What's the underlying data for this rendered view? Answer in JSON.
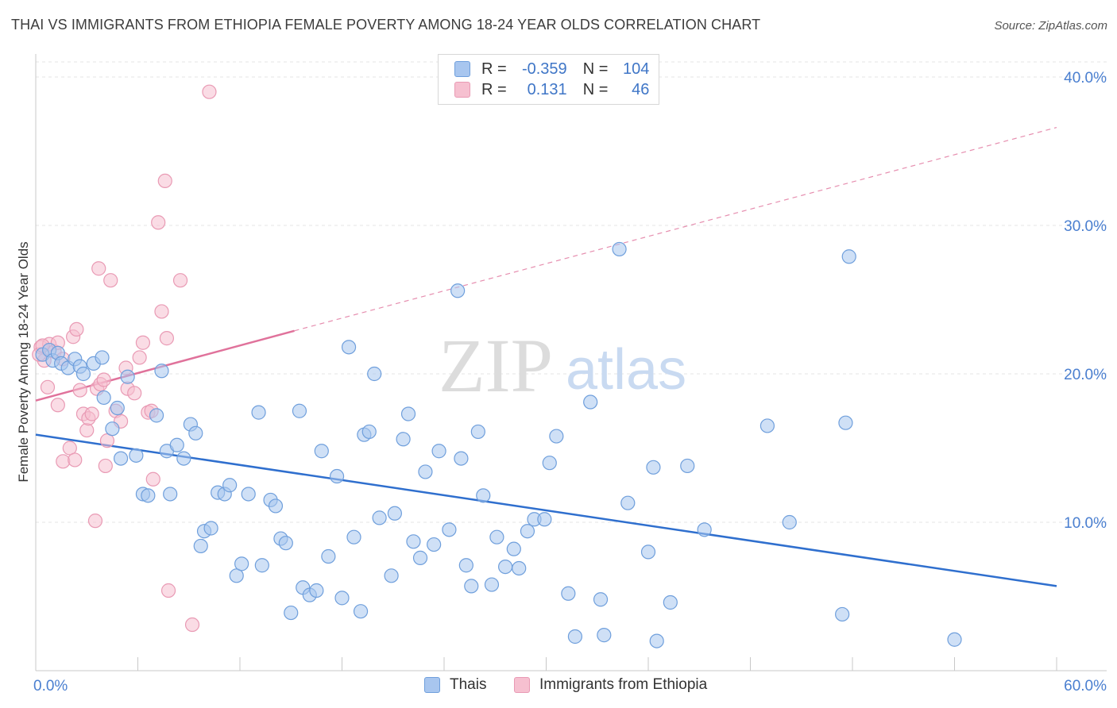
{
  "title": "THAI VS IMMIGRANTS FROM ETHIOPIA FEMALE POVERTY AMONG 18-24 YEAR OLDS CORRELATION CHART",
  "source": "Source: ZipAtlas.com",
  "watermark": {
    "zip": "ZIP",
    "atlas": "atlas"
  },
  "legend_top": {
    "rows": [
      {
        "r_label": "R =",
        "r_value": "-0.359",
        "n_label": "N =",
        "n_value": "104"
      },
      {
        "r_label": "R =",
        "r_value": "0.131",
        "n_label": "N =",
        "n_value": "46"
      }
    ]
  },
  "legend_bottom": {
    "thais": "Thais",
    "ethiopia": "Immigrants from Ethiopia"
  },
  "chart_data": {
    "type": "scatter",
    "title": "THAI VS IMMIGRANTS FROM ETHIOPIA FEMALE POVERTY AMONG 18-24 YEAR OLDS CORRELATION CHART",
    "xlabel": "",
    "ylabel": "Female Poverty Among 18-24 Year Olds",
    "xlim": [
      0,
      60
    ],
    "ylim": [
      0,
      40
    ],
    "x_tick_labels": [
      "0.0%",
      "60.0%"
    ],
    "y_ticks": [
      10,
      20,
      30,
      40
    ],
    "y_tick_labels": [
      "10.0%",
      "20.0%",
      "30.0%",
      "40.0%"
    ],
    "grid": true,
    "colors": {
      "thais_fill": "#a8c6ef",
      "thais_stroke": "#6f9fdc",
      "thais_line": "#2f6fce",
      "eth_fill": "#f6c0d0",
      "eth_stroke": "#e99ab4",
      "eth_line": "#e0729b",
      "tick_text": "#4a7fd0"
    },
    "series": [
      {
        "name": "Thais",
        "r": -0.359,
        "n": 104,
        "trend": {
          "x0": 0,
          "y0": 15.9,
          "x1": 60,
          "y1": 5.7
        },
        "points": [
          [
            0.4,
            21.3
          ],
          [
            0.8,
            21.6
          ],
          [
            1.0,
            20.9
          ],
          [
            1.3,
            21.4
          ],
          [
            1.5,
            20.7
          ],
          [
            1.9,
            20.4
          ],
          [
            2.3,
            21.0
          ],
          [
            2.6,
            20.5
          ],
          [
            2.8,
            20.0
          ],
          [
            3.4,
            20.7
          ],
          [
            3.9,
            21.1
          ],
          [
            4.0,
            18.4
          ],
          [
            4.5,
            16.3
          ],
          [
            4.8,
            17.7
          ],
          [
            5.0,
            14.3
          ],
          [
            5.4,
            19.8
          ],
          [
            5.9,
            14.5
          ],
          [
            6.3,
            11.9
          ],
          [
            6.6,
            11.8
          ],
          [
            7.1,
            17.2
          ],
          [
            7.4,
            20.2
          ],
          [
            7.7,
            14.8
          ],
          [
            7.9,
            11.9
          ],
          [
            8.3,
            15.2
          ],
          [
            8.7,
            14.3
          ],
          [
            9.1,
            16.6
          ],
          [
            9.4,
            16.0
          ],
          [
            9.7,
            8.4
          ],
          [
            9.9,
            9.4
          ],
          [
            10.3,
            9.6
          ],
          [
            10.7,
            12.0
          ],
          [
            11.1,
            11.9
          ],
          [
            11.4,
            12.5
          ],
          [
            11.8,
            6.4
          ],
          [
            12.1,
            7.2
          ],
          [
            12.5,
            11.9
          ],
          [
            13.1,
            17.4
          ],
          [
            13.3,
            7.1
          ],
          [
            13.8,
            11.5
          ],
          [
            14.1,
            11.1
          ],
          [
            14.4,
            8.9
          ],
          [
            14.7,
            8.6
          ],
          [
            15.0,
            3.9
          ],
          [
            15.5,
            17.5
          ],
          [
            15.7,
            5.6
          ],
          [
            16.1,
            5.1
          ],
          [
            16.5,
            5.4
          ],
          [
            16.8,
            14.8
          ],
          [
            17.2,
            7.7
          ],
          [
            17.7,
            13.1
          ],
          [
            18.0,
            4.9
          ],
          [
            18.4,
            21.8
          ],
          [
            18.7,
            9.0
          ],
          [
            19.1,
            4.0
          ],
          [
            19.3,
            15.9
          ],
          [
            19.6,
            16.1
          ],
          [
            19.9,
            20.0
          ],
          [
            20.2,
            10.3
          ],
          [
            20.9,
            6.4
          ],
          [
            21.1,
            10.6
          ],
          [
            21.6,
            15.6
          ],
          [
            21.9,
            17.3
          ],
          [
            22.2,
            8.7
          ],
          [
            22.6,
            7.6
          ],
          [
            22.9,
            13.4
          ],
          [
            23.4,
            8.5
          ],
          [
            23.7,
            14.8
          ],
          [
            24.3,
            9.5
          ],
          [
            24.8,
            25.6
          ],
          [
            25.0,
            14.3
          ],
          [
            25.3,
            7.1
          ],
          [
            25.6,
            5.7
          ],
          [
            26.0,
            16.1
          ],
          [
            26.3,
            11.8
          ],
          [
            26.8,
            5.8
          ],
          [
            27.1,
            9.0
          ],
          [
            27.6,
            7.0
          ],
          [
            28.1,
            8.2
          ],
          [
            28.4,
            6.9
          ],
          [
            28.9,
            9.4
          ],
          [
            29.3,
            10.2
          ],
          [
            29.9,
            10.2
          ],
          [
            30.2,
            14.0
          ],
          [
            30.6,
            15.8
          ],
          [
            31.3,
            5.2
          ],
          [
            31.7,
            2.3
          ],
          [
            32.6,
            18.1
          ],
          [
            33.2,
            4.8
          ],
          [
            33.4,
            2.4
          ],
          [
            34.3,
            28.4
          ],
          [
            34.8,
            11.3
          ],
          [
            36.0,
            8.0
          ],
          [
            36.3,
            13.7
          ],
          [
            36.5,
            2.0
          ],
          [
            37.3,
            4.6
          ],
          [
            38.3,
            13.8
          ],
          [
            39.3,
            9.5
          ],
          [
            43.0,
            16.5
          ],
          [
            44.3,
            10.0
          ],
          [
            47.4,
            3.8
          ],
          [
            47.6,
            16.7
          ],
          [
            47.8,
            27.9
          ],
          [
            54.0,
            2.1
          ]
        ]
      },
      {
        "name": "Immigrants from Ethiopia",
        "r": 0.131,
        "n": 46,
        "trend": {
          "x0": 0,
          "y0": 18.2,
          "x1": 15.2,
          "y1": 22.9,
          "dash_to_x": 60,
          "dash_to_y": 36.6
        },
        "points": [
          [
            0.3,
            21.8
          ],
          [
            0.5,
            20.9
          ],
          [
            0.8,
            22.0
          ],
          [
            1.1,
            21.5
          ],
          [
            1.3,
            22.1
          ],
          [
            1.6,
            21.0
          ],
          [
            0.7,
            19.1
          ],
          [
            1.3,
            17.9
          ],
          [
            1.6,
            14.1
          ],
          [
            2.0,
            15.0
          ],
          [
            2.2,
            22.5
          ],
          [
            2.3,
            14.2
          ],
          [
            2.4,
            23.0
          ],
          [
            2.6,
            18.9
          ],
          [
            2.8,
            17.3
          ],
          [
            3.0,
            16.2
          ],
          [
            3.1,
            17.0
          ],
          [
            3.3,
            17.3
          ],
          [
            3.5,
            10.1
          ],
          [
            3.6,
            19.0
          ],
          [
            3.7,
            27.1
          ],
          [
            3.8,
            19.3
          ],
          [
            4.0,
            19.6
          ],
          [
            4.1,
            13.8
          ],
          [
            4.2,
            15.5
          ],
          [
            4.4,
            26.3
          ],
          [
            4.7,
            17.5
          ],
          [
            5.0,
            16.8
          ],
          [
            5.3,
            20.4
          ],
          [
            5.4,
            19.0
          ],
          [
            5.8,
            18.7
          ],
          [
            6.1,
            21.1
          ],
          [
            6.3,
            22.1
          ],
          [
            6.6,
            17.4
          ],
          [
            6.8,
            17.5
          ],
          [
            6.9,
            12.9
          ],
          [
            7.2,
            30.2
          ],
          [
            7.4,
            24.2
          ],
          [
            7.6,
            33.0
          ],
          [
            7.7,
            22.4
          ],
          [
            7.8,
            5.4
          ],
          [
            8.5,
            26.3
          ],
          [
            9.2,
            3.1
          ],
          [
            10.2,
            39.0
          ],
          [
            0.2,
            21.3
          ],
          [
            0.4,
            21.9
          ]
        ]
      }
    ]
  }
}
